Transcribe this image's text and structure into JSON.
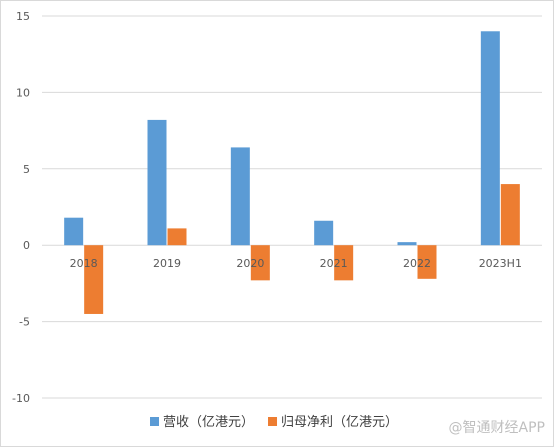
{
  "chart_data": {
    "type": "bar",
    "categories": [
      "2018",
      "2019",
      "2020",
      "2021",
      "2022",
      "2023H1"
    ],
    "series": [
      {
        "name": "营收（亿港元）",
        "color": "#5b9bd5",
        "values": [
          1.8,
          8.2,
          6.4,
          1.6,
          0.2,
          14.0
        ]
      },
      {
        "name": "归母净利（亿港元）",
        "color": "#ed7d31",
        "values": [
          -4.5,
          1.1,
          -2.3,
          -2.3,
          -2.2,
          4.0
        ]
      }
    ],
    "y_ticks": [
      "-10",
      "-5",
      "0",
      "5",
      "10",
      "15"
    ],
    "ylim": [
      -10,
      15
    ],
    "grid": true,
    "legend": "bottom"
  },
  "watermark": "@智通财经APP"
}
